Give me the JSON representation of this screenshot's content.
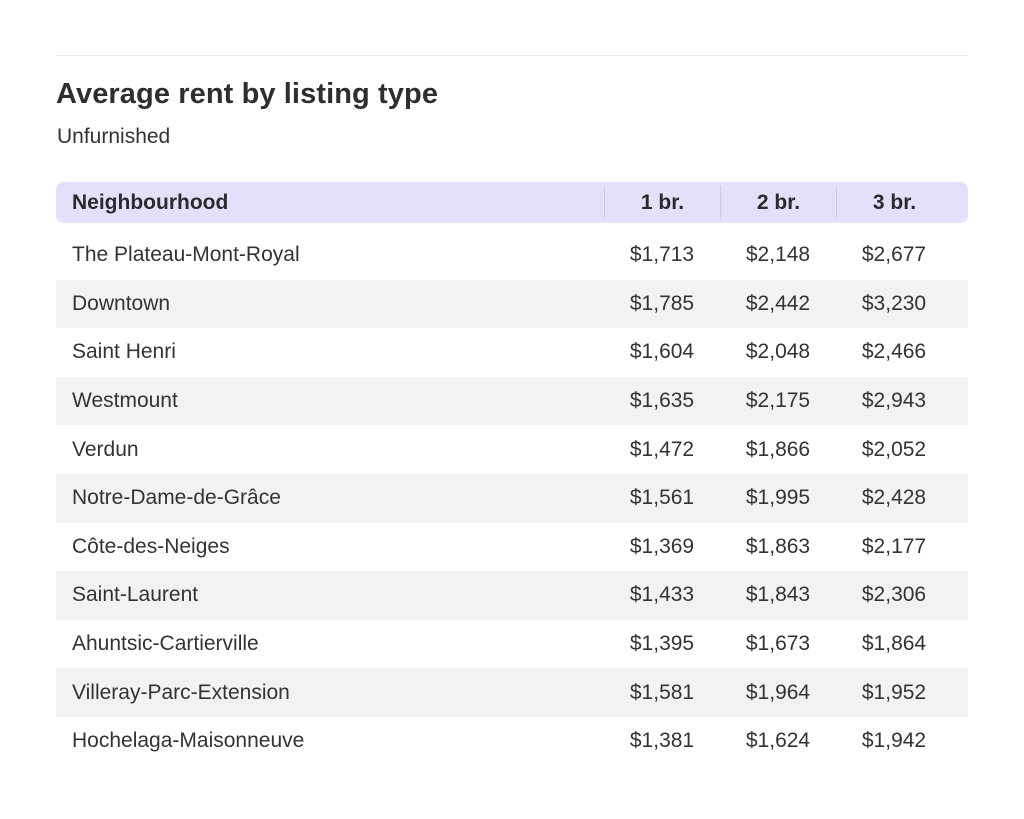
{
  "title": "Average rent by listing type",
  "subtitle": "Unfurnished",
  "colors": {
    "header_bg": "#e3e0fc",
    "stripe_bg": "#f2f2f2",
    "text": "#2b2b2b"
  },
  "chart_data": {
    "type": "table",
    "title": "Average rent by listing type",
    "subtitle": "Unfurnished",
    "columns": [
      "Neighbourhood",
      "1 br.",
      "2 br.",
      "3 br."
    ],
    "rows": [
      [
        "The Plateau-Mont-Royal",
        "$1,713",
        "$2,148",
        "$2,677"
      ],
      [
        "Downtown",
        "$1,785",
        "$2,442",
        "$3,230"
      ],
      [
        "Saint Henri",
        "$1,604",
        "$2,048",
        "$2,466"
      ],
      [
        "Westmount",
        "$1,635",
        "$2,175",
        "$2,943"
      ],
      [
        "Verdun",
        "$1,472",
        "$1,866",
        "$2,052"
      ],
      [
        "Notre-Dame-de-Grâce",
        "$1,561",
        "$1,995",
        "$2,428"
      ],
      [
        "Côte-des-Neiges",
        "$1,369",
        "$1,863",
        "$2,177"
      ],
      [
        "Saint-Laurent",
        "$1,433",
        "$1,843",
        "$2,306"
      ],
      [
        "Ahuntsic-Cartierville",
        "$1,395",
        "$1,673",
        "$1,864"
      ],
      [
        "Villeray-Parc-Extension",
        "$1,581",
        "$1,964",
        "$1,952"
      ],
      [
        "Hochelaga-Maisonneuve",
        "$1,381",
        "$1,624",
        "$1,942"
      ]
    ]
  }
}
